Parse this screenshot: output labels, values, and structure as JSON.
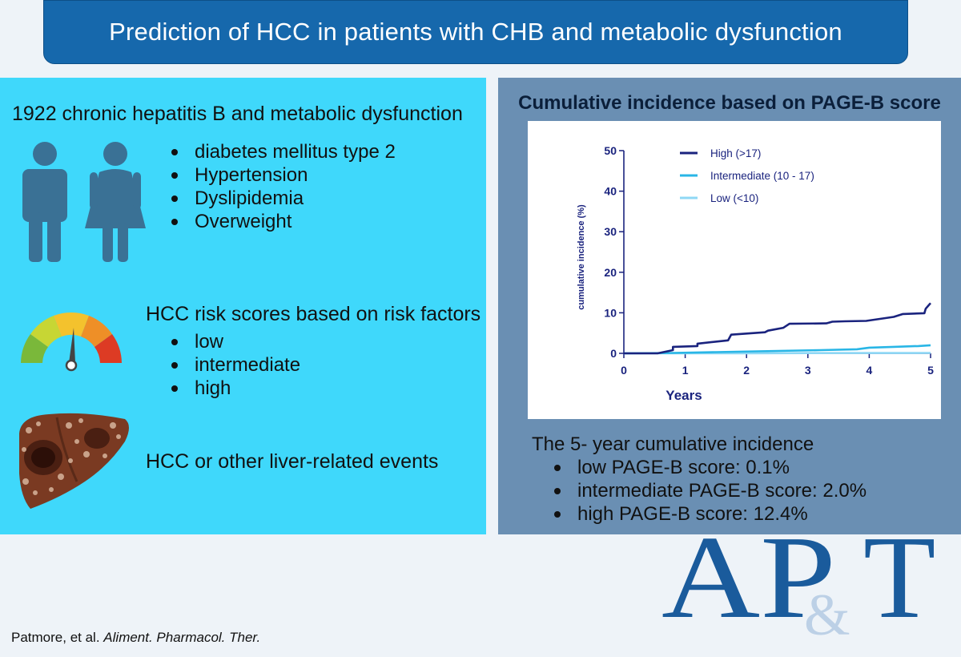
{
  "title": "Prediction of HCC in patients with CHB and metabolic dysfunction",
  "left": {
    "cohort_heading": "1922 chronic hepatitis B and metabolic dysfunction",
    "conditions": [
      "diabetes mellitus type 2",
      "Hypertension",
      "Dyslipidemia",
      "Overweight"
    ],
    "risk_heading": "HCC risk scores based on risk factors",
    "risk_levels": [
      "low",
      "intermediate",
      "high"
    ],
    "outcome": "HCC or other liver-related events"
  },
  "right": {
    "summary_heading": "The 5- year cumulative incidence",
    "summary_items": [
      "low PAGE-B score: 0.1%",
      "intermediate PAGE-B score: 2.0%",
      "high PAGE-B score: 12.4%"
    ]
  },
  "citation": {
    "authors": "Patmore, et al.",
    "journal": "Aliment. Pharmacol. Ther."
  },
  "logo": {
    "line1": "AP",
    "amp": "&",
    "t": "T"
  },
  "colors": {
    "title_bg": "#1668ac",
    "left_bg": "#3fd8fb",
    "right_bg": "#6a8fb3",
    "high": "#1a237e",
    "intermediate": "#29b6e6",
    "low": "#8fd8f5",
    "logo": "#1a5b9c"
  },
  "chart_data": {
    "type": "line",
    "title": "Cumulative incidence based on PAGE-B score",
    "xlabel": "Years",
    "ylabel": "cumulative incidence (%)",
    "xlim": [
      0,
      5
    ],
    "ylim": [
      0,
      50
    ],
    "xticks": [
      0,
      1,
      2,
      3,
      4,
      5
    ],
    "yticks": [
      0,
      10,
      20,
      30,
      40,
      50
    ],
    "legend_position": "top-right",
    "series": [
      {
        "name": "High (>17)",
        "color": "#1a237e",
        "x": [
          0,
          0.55,
          0.8,
          0.8,
          1.2,
          1.2,
          1.7,
          1.75,
          2.3,
          2.35,
          2.6,
          2.7,
          3.3,
          3.4,
          3.6,
          3.95,
          4.4,
          4.55,
          4.9,
          4.92,
          5.0
        ],
        "y": [
          0,
          0,
          0.8,
          1.6,
          1.8,
          2.4,
          3.2,
          4.6,
          5.2,
          5.6,
          6.3,
          7.3,
          7.4,
          7.8,
          7.9,
          8.0,
          9.0,
          9.7,
          9.9,
          11.0,
          12.4
        ]
      },
      {
        "name": "Intermediate (10 - 17)",
        "color": "#29b6e6",
        "x": [
          0,
          0.8,
          1.5,
          2.5,
          3.2,
          3.8,
          4.0,
          4.4,
          4.8,
          5.0
        ],
        "y": [
          0,
          0.1,
          0.3,
          0.6,
          0.8,
          1.0,
          1.4,
          1.6,
          1.8,
          2.0
        ]
      },
      {
        "name": "Low (<10)",
        "color": "#8fd8f5",
        "x": [
          0,
          1,
          2,
          3,
          4,
          5
        ],
        "y": [
          0,
          0,
          0.02,
          0.05,
          0.08,
          0.1
        ]
      }
    ]
  }
}
